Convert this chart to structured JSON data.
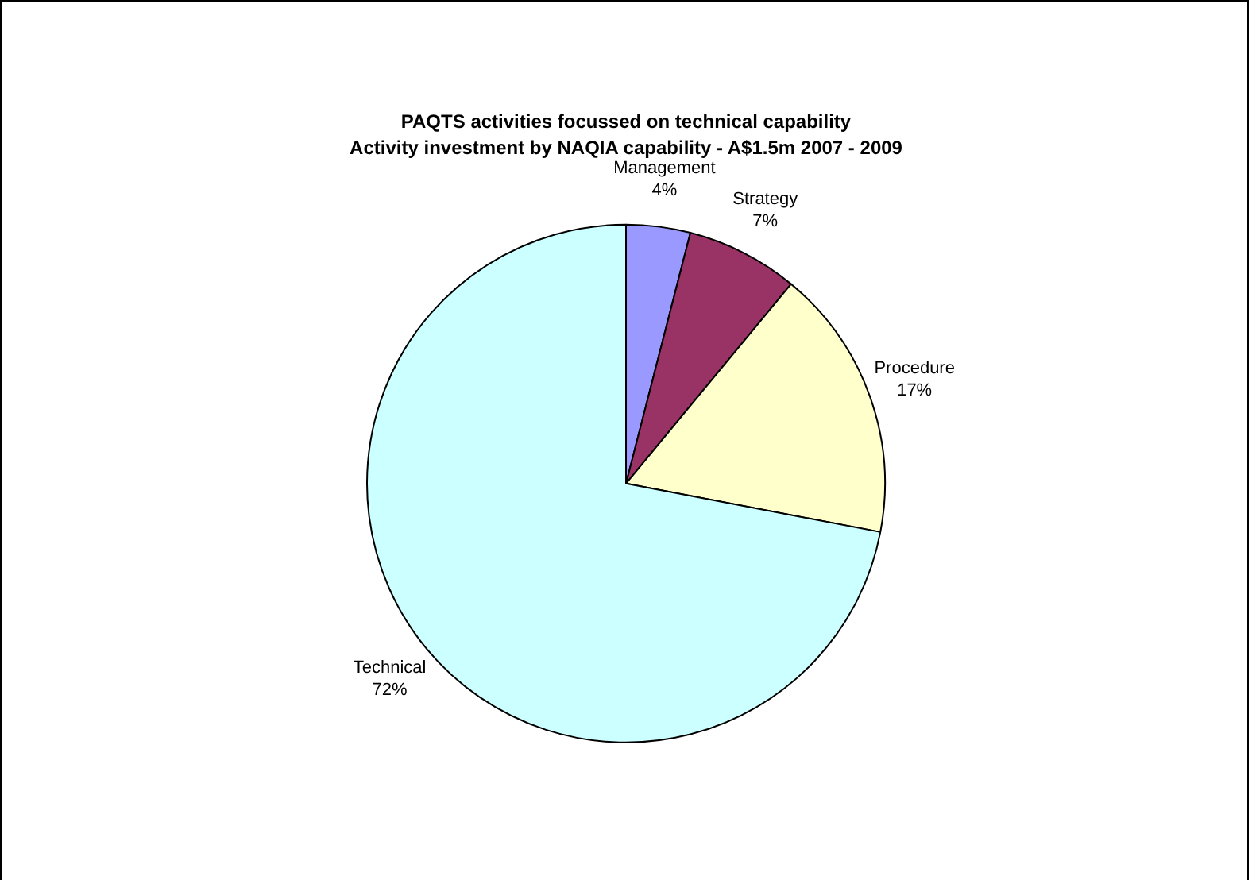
{
  "chart_data": {
    "type": "pie",
    "title": "PAQTS activities focussed on technical capability",
    "subtitle": "Activity investment by NAQIA capability - A$1.5m 2007 - 2009",
    "categories": [
      "Management",
      "Strategy",
      "Procedure",
      "Technical"
    ],
    "values": [
      4,
      7,
      17,
      72
    ],
    "value_labels": [
      "4%",
      "7%",
      "17%",
      "72%"
    ],
    "colors": [
      "#9999ff",
      "#993366",
      "#ffffcc",
      "#ccffff"
    ],
    "legend": false
  }
}
